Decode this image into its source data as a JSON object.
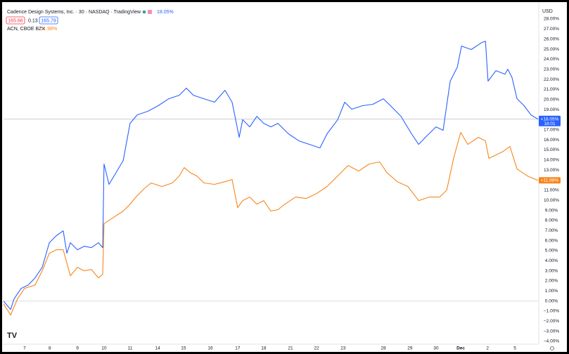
{
  "chart_data": {
    "type": "line",
    "header": {
      "title": "Cadence Design Systems, Inc. · 30 · NASDAQ · TradingView",
      "open": "165.66",
      "change": "0.13",
      "close": "165.79",
      "countdown": "18:01",
      "currency": "USD"
    },
    "series": [
      {
        "name": "Cadence Design Systems, Inc. · 30 · NASDAQ · TradingView",
        "legend_value": "18.05%",
        "price_label": "+18.05%",
        "color": "#2962ff",
        "x": [
          -0.8,
          -0.53,
          -0.4,
          -0.13,
          0.14,
          0.4,
          0.67,
          0.94,
          1.21,
          1.47,
          1.61,
          1.74,
          2.01,
          2.27,
          2.54,
          2.81,
          2.97,
          3.02,
          3.21,
          3.48,
          3.75,
          4.01,
          4.28,
          4.68,
          5.08,
          5.48,
          5.88,
          6.15,
          6.42,
          6.82,
          7.22,
          7.62,
          7.89,
          8.16,
          8.29,
          8.56,
          8.83,
          9.09,
          9.36,
          9.63,
          10.03,
          10.43,
          10.83,
          11.23,
          11.5,
          11.9,
          12.17,
          12.44,
          12.84,
          13.24,
          13.64,
          13.91,
          14.31,
          14.71,
          14.98,
          15.24,
          15.64,
          15.91,
          16.18,
          16.45,
          16.61,
          16.98,
          17.38,
          17.52,
          17.62,
          17.92,
          18.26,
          18.37,
          18.53,
          18.72,
          18.99,
          19.25,
          19.52
        ],
        "values": [
          0.0,
          -0.84,
          0.21,
          1.26,
          1.6,
          2.3,
          3.35,
          5.79,
          6.49,
          6.97,
          4.74,
          5.79,
          5.09,
          5.44,
          5.3,
          5.79,
          5.3,
          13.6,
          11.58,
          12.76,
          13.95,
          17.64,
          18.48,
          18.83,
          19.39,
          20.08,
          20.43,
          21.13,
          20.43,
          20.08,
          19.74,
          20.92,
          19.74,
          16.25,
          18.0,
          17.29,
          18.34,
          17.64,
          17.29,
          17.64,
          16.6,
          15.9,
          15.55,
          15.2,
          16.6,
          17.99,
          19.74,
          19.04,
          19.39,
          19.53,
          20.08,
          19.39,
          18.34,
          16.6,
          15.55,
          16.25,
          17.29,
          16.95,
          21.83,
          23.22,
          25.31,
          24.97,
          25.66,
          25.8,
          21.83,
          22.87,
          22.52,
          23.01,
          22.18,
          20.08,
          19.39,
          18.48,
          18.05
        ]
      },
      {
        "name": "ACN, CBOE BZX",
        "legend_value": "11.98%",
        "price_label": "+11.98%",
        "color": "#f7861b",
        "x": [
          -0.8,
          -0.53,
          -0.27,
          0.0,
          0.4,
          0.67,
          0.94,
          1.21,
          1.47,
          1.74,
          2.01,
          2.27,
          2.54,
          2.81,
          2.97,
          3.02,
          3.34,
          3.75,
          4.01,
          4.28,
          4.55,
          4.81,
          5.22,
          5.62,
          5.88,
          6.07,
          6.29,
          6.55,
          6.82,
          7.22,
          7.62,
          7.89,
          8.1,
          8.29,
          8.56,
          8.83,
          9.09,
          9.36,
          9.63,
          9.9,
          10.3,
          10.7,
          11.1,
          11.5,
          11.9,
          12.3,
          12.7,
          13.1,
          13.5,
          13.77,
          14.17,
          14.57,
          14.98,
          15.38,
          15.78,
          16.05,
          16.31,
          16.58,
          16.85,
          17.25,
          17.52,
          17.65,
          17.92,
          18.19,
          18.45,
          18.72,
          19.12,
          19.52
        ],
        "values": [
          -0.28,
          -1.39,
          0.21,
          1.26,
          1.6,
          3.0,
          4.74,
          5.09,
          5.09,
          2.51,
          3.35,
          3.0,
          3.14,
          2.3,
          2.65,
          7.67,
          8.23,
          8.93,
          9.62,
          10.46,
          11.16,
          11.72,
          11.37,
          11.72,
          12.41,
          13.25,
          12.76,
          12.41,
          11.72,
          11.58,
          11.85,
          12.06,
          9.27,
          9.97,
          10.32,
          9.62,
          9.97,
          8.93,
          9.07,
          9.62,
          10.32,
          10.18,
          10.67,
          11.37,
          12.41,
          13.46,
          12.9,
          13.6,
          13.81,
          12.76,
          11.85,
          11.37,
          9.97,
          10.32,
          10.32,
          11.02,
          14.16,
          16.74,
          15.55,
          16.25,
          15.9,
          14.16,
          14.5,
          14.85,
          15.34,
          13.11,
          12.41,
          11.98
        ]
      }
    ],
    "xlim": [
      -0.8,
      19.52
    ],
    "xticks": [
      {
        "value": 0,
        "label": "7"
      },
      {
        "value": 0.96,
        "label": "8"
      },
      {
        "value": 2.01,
        "label": "9"
      },
      {
        "value": 3.02,
        "label": "10"
      },
      {
        "value": 4.01,
        "label": "11"
      },
      {
        "value": 5.06,
        "label": "14"
      },
      {
        "value": 6.04,
        "label": "15"
      },
      {
        "value": 7.06,
        "label": "16"
      },
      {
        "value": 8.1,
        "label": "17"
      },
      {
        "value": 9.09,
        "label": "18"
      },
      {
        "value": 10.11,
        "label": "21"
      },
      {
        "value": 11.1,
        "label": "22"
      },
      {
        "value": 12.11,
        "label": "23"
      },
      {
        "value": 13.64,
        "label": "28"
      },
      {
        "value": 14.65,
        "label": "29"
      },
      {
        "value": 15.64,
        "label": "30"
      },
      {
        "value": 16.58,
        "label": "Dec"
      },
      {
        "value": 17.6,
        "label": "2"
      },
      {
        "value": 18.64,
        "label": "5"
      }
    ],
    "ylim": [
      -4,
      28
    ],
    "yticks": [
      {
        "value": 28,
        "label": "28.00%"
      },
      {
        "value": 27,
        "label": "27.00%"
      },
      {
        "value": 26,
        "label": "26.00%"
      },
      {
        "value": 25,
        "label": "25.00%"
      },
      {
        "value": 24,
        "label": "24.00%"
      },
      {
        "value": 23,
        "label": "23.00%"
      },
      {
        "value": 22,
        "label": "22.00%"
      },
      {
        "value": 21,
        "label": "21.00%"
      },
      {
        "value": 20,
        "label": "20.00%"
      },
      {
        "value": 19,
        "label": "19.00%"
      },
      {
        "value": 18,
        "label": "18.00%"
      },
      {
        "value": 17,
        "label": "17.00%"
      },
      {
        "value": 16,
        "label": "16.00%"
      },
      {
        "value": 15,
        "label": "15.00%"
      },
      {
        "value": 14,
        "label": "14.00%"
      },
      {
        "value": 13,
        "label": "13.00%"
      },
      {
        "value": 12,
        "label": "12.00%"
      },
      {
        "value": 11,
        "label": "11.00%"
      },
      {
        "value": 10,
        "label": "10.00%"
      },
      {
        "value": 9,
        "label": "9.00%"
      },
      {
        "value": 8,
        "label": "8.00%"
      },
      {
        "value": 7,
        "label": "7.00%"
      },
      {
        "value": 6,
        "label": "6.00%"
      },
      {
        "value": 5,
        "label": "5.00%"
      },
      {
        "value": 4,
        "label": "4.00%"
      },
      {
        "value": 3,
        "label": "3.00%"
      },
      {
        "value": 2,
        "label": "2.00%"
      },
      {
        "value": 1,
        "label": "1.00%"
      },
      {
        "value": 0,
        "label": "0.00%"
      },
      {
        "value": -1,
        "label": "−1.00%"
      },
      {
        "value": -2,
        "label": "−2.00%"
      },
      {
        "value": -3,
        "label": "−3.00%"
      },
      {
        "value": -4,
        "label": "−4.00%"
      }
    ],
    "grid": false
  }
}
